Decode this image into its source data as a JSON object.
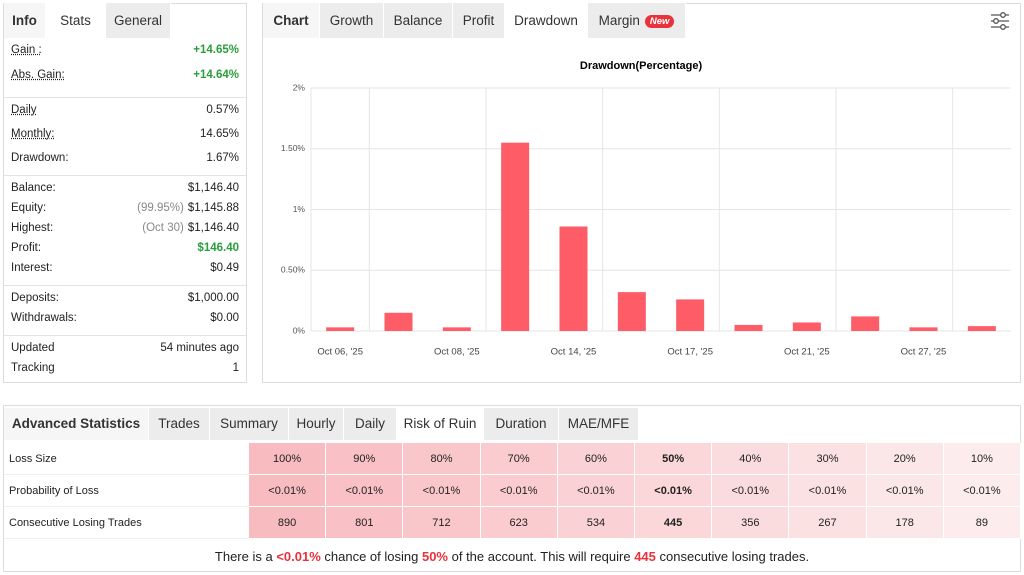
{
  "stats_panel": {
    "tabs": [
      "Info",
      "Stats",
      "General"
    ],
    "groups": [
      [
        {
          "label": "Gain :",
          "value": "+14.65%",
          "color": "#2a9d3c",
          "underline": true
        },
        {
          "label": "Abs. Gain:",
          "value": "+14.64%",
          "color": "#2a9d3c",
          "underline": true
        }
      ],
      [
        {
          "label": "Daily",
          "value": "0.57%",
          "underline": true
        },
        {
          "label": "Monthly:",
          "value": "14.65%",
          "underline": true
        },
        {
          "label": "Drawdown:",
          "value": "1.67%"
        }
      ],
      [
        {
          "label": "Balance:",
          "value": "$1,146.40"
        },
        {
          "label": "Equity:",
          "note": "(99.95%)",
          "value": "$1,145.88"
        },
        {
          "label": "Highest:",
          "note": "(Oct 30)",
          "value": "$1,146.40"
        },
        {
          "label": "Profit:",
          "value": "$146.40",
          "color": "#2a9d3c"
        },
        {
          "label": "Interest:",
          "value": "$0.49"
        }
      ],
      [
        {
          "label": "Deposits:",
          "value": "$1,000.00"
        },
        {
          "label": "Withdrawals:",
          "value": "$0.00"
        }
      ],
      [
        {
          "label": "Updated",
          "value": "54 minutes ago"
        },
        {
          "label": "Tracking",
          "value": "1"
        }
      ]
    ]
  },
  "chart_tabs": {
    "items": [
      "Chart",
      "Growth",
      "Balance",
      "Profit",
      "Drawdown",
      "Margin"
    ],
    "badge": "New"
  },
  "chart_data": {
    "type": "bar",
    "title": "Drawdown(Percentage)",
    "color": "#fe5c67",
    "categories": [
      "Oct 06, '25",
      null,
      "Oct 08, '25",
      null,
      "Oct 14, '25",
      null,
      "Oct 17, '25",
      null,
      "Oct 21, '25",
      null,
      "Oct 27, '25",
      null
    ],
    "values": [
      0.03,
      0.15,
      0.03,
      1.55,
      0.86,
      0.32,
      0.26,
      0.05,
      0.07,
      0.12,
      0.03,
      0.04
    ],
    "ylim": [
      0,
      2
    ],
    "yticks": [
      {
        "value": 0,
        "label": "0%"
      },
      {
        "value": 0.5,
        "label": "0.50%"
      },
      {
        "value": 1,
        "label": "1%"
      },
      {
        "value": 1.5,
        "label": "1.50%"
      },
      {
        "value": 2,
        "label": "2%"
      }
    ],
    "grid": true
  },
  "advanced": {
    "tabs": [
      "Advanced Statistics",
      "Trades",
      "Summary",
      "Hourly",
      "Daily",
      "Risk of Ruin",
      "Duration",
      "MAE/MFE"
    ],
    "table": {
      "rows": [
        [
          "Loss Size",
          "100%",
          "90%",
          "80%",
          "70%",
          "60%",
          "50%",
          "40%",
          "30%",
          "20%",
          "10%"
        ],
        [
          "Probability of Loss",
          "<0.01%",
          "<0.01%",
          "<0.01%",
          "<0.01%",
          "<0.01%",
          "<0.01%",
          "<0.01%",
          "<0.01%",
          "<0.01%",
          "<0.01%"
        ],
        [
          "Consecutive Losing Trades",
          "890",
          "801",
          "712",
          "623",
          "534",
          "445",
          "356",
          "267",
          "178",
          "89"
        ]
      ]
    },
    "summary": [
      "There is a ",
      "<0.01%",
      " chance of losing ",
      "50%",
      " of the account. This will require ",
      "445",
      " consecutive losing trades."
    ]
  }
}
